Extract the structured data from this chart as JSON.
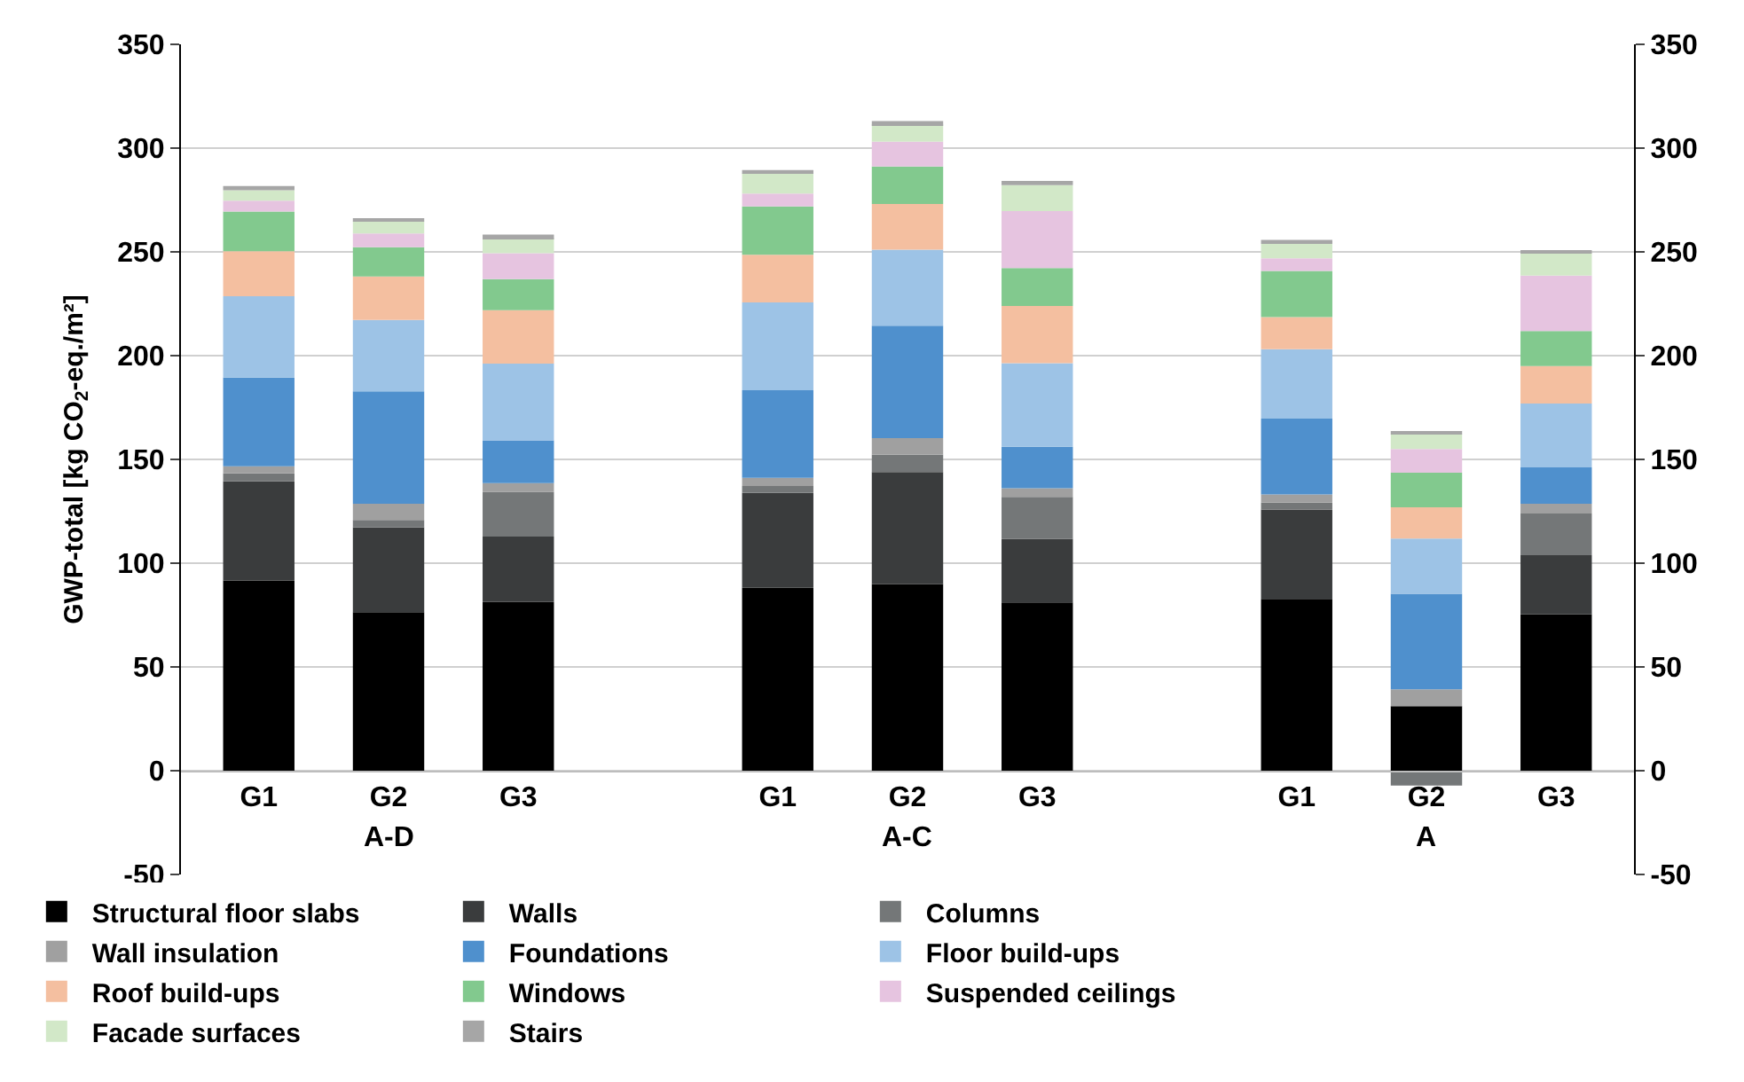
{
  "chart_data": {
    "type": "bar",
    "stacked": true,
    "ylabel": "GWP-total [kg CO$_{2}$-eq./m²]",
    "categories": [
      "G1",
      "G2",
      "G3",
      null,
      "G1",
      "G2",
      "G3",
      null,
      "G1",
      "G2",
      "G3"
    ],
    "annotations": [
      "A-D",
      "A-C",
      "A"
    ],
    "series": [
      {
        "name": "Structural floor slabs",
        "color": "#000000",
        "values": [
          91.7,
          76.4,
          81.4,
          null,
          88.1,
          90.0,
          81.1,
          null,
          82.8,
          31.1,
          75.3
        ]
      },
      {
        "name": "Walls",
        "color": "#3a3c3d",
        "values": [
          47.7,
          40.8,
          31.4,
          null,
          45.8,
          53.9,
          30.6,
          null,
          43.0,
          0,
          28.6
        ]
      },
      {
        "name": "Columns",
        "color": "#747778",
        "values": [
          3.9,
          3.6,
          21.6,
          null,
          3.3,
          8.3,
          20.2,
          null,
          3.4,
          -7.2,
          20.0
        ]
      },
      {
        "name": "Wall insulation",
        "color": "#a0a0a0",
        "values": [
          3.4,
          7.8,
          4.2,
          null,
          3.9,
          8.1,
          4.2,
          null,
          3.9,
          8.1,
          4.7
        ]
      },
      {
        "name": "Foundations",
        "color": "#4f90cd",
        "values": [
          42.7,
          54.2,
          20.6,
          null,
          42.2,
          54.1,
          20.0,
          null,
          36.6,
          46.1,
          17.5
        ]
      },
      {
        "name": "Floor build-ups",
        "color": "#9dc3e6",
        "values": [
          39.2,
          34.4,
          36.9,
          null,
          42.3,
          36.7,
          40.3,
          null,
          33.4,
          26.6,
          30.8
        ]
      },
      {
        "name": "Roof build-ups",
        "color": "#f4bfa0",
        "values": [
          21.7,
          20.9,
          25.8,
          null,
          23.0,
          22.0,
          27.5,
          null,
          15.5,
          15.0,
          18.1
        ]
      },
      {
        "name": "Windows",
        "color": "#82c98e",
        "values": [
          19.1,
          14.1,
          15.0,
          null,
          23.3,
          18.0,
          18.3,
          null,
          22.2,
          16.7,
          16.9
        ]
      },
      {
        "name": "Suspended ceilings",
        "color": "#e6c4e0",
        "values": [
          5.3,
          6.7,
          12.5,
          null,
          6.2,
          12.0,
          27.5,
          null,
          6.1,
          11.4,
          26.7
        ]
      },
      {
        "name": "Facade surfaces",
        "color": "#d2e8c8",
        "values": [
          5.0,
          5.8,
          7.3,
          null,
          9.7,
          8.4,
          12.5,
          null,
          7.0,
          7.2,
          10.8
        ]
      },
      {
        "name": "Stairs",
        "color": "#a6a6a6",
        "values": [
          2.0,
          1.4,
          1.6,
          null,
          1.6,
          1.5,
          2.0,
          null,
          1.9,
          1.4,
          0.9
        ]
      }
    ],
    "ylim": [
      -50,
      350
    ],
    "yticks": [
      -50,
      0,
      50,
      100,
      150,
      200,
      250,
      300,
      350
    ],
    "y2lim": [
      -50,
      350
    ],
    "y2ticks": [
      -50,
      0,
      50,
      100,
      150,
      200,
      250,
      300,
      350
    ],
    "grid": "y",
    "legend": "bottom"
  }
}
